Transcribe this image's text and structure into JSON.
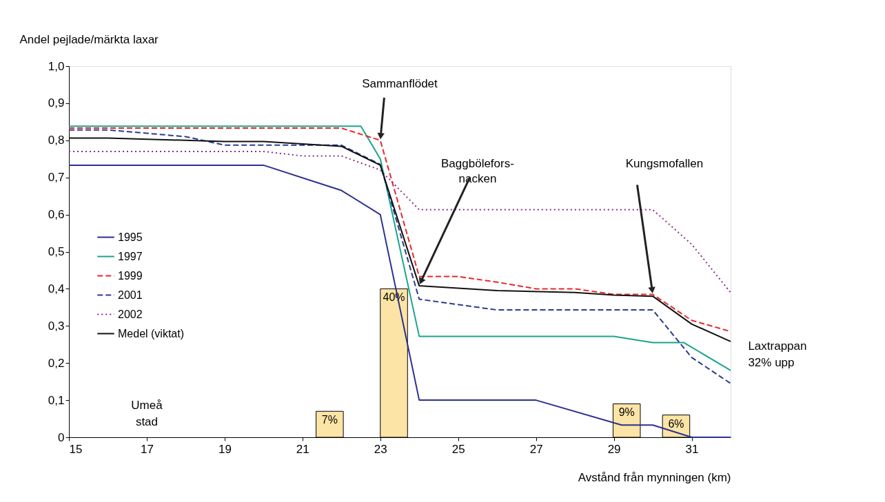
{
  "chart_data": {
    "type": "line",
    "xlabel": "Avstånd från mynningen (km)",
    "ylabel": "Andel pejlade/märkta laxar",
    "xlim": [
      15,
      32
    ],
    "xticks": [
      15,
      17,
      19,
      21,
      23,
      25,
      27,
      29,
      31
    ],
    "ylim": [
      0,
      1.0
    ],
    "yticks": [
      0,
      {
        "value": 0.1,
        "label": "0,1"
      },
      {
        "value": 0.2,
        "label": "0,2"
      },
      {
        "value": 0.3,
        "label": "0,3"
      },
      {
        "value": 0.4,
        "label": "0,4"
      },
      {
        "value": 0.5,
        "label": "0,5"
      },
      {
        "value": 0.6,
        "label": "0,6"
      },
      {
        "value": 0.7,
        "label": "0,7"
      },
      {
        "value": 0.8,
        "label": "0,8"
      },
      {
        "value": 0.9,
        "label": "0,9"
      },
      {
        "value": 1.0,
        "label": "1,0"
      }
    ],
    "grid": false,
    "legend": "left",
    "series": [
      {
        "type": "bar",
        "color": "#fce4a6",
        "x": [
          21.7,
          23.35,
          29.33,
          30.6
        ],
        "values": [
          0.07,
          0.4,
          0.09,
          0.06
        ],
        "value_labels": [
          "7%",
          "40%",
          "9%",
          "6%"
        ]
      },
      {
        "name": "1995",
        "color": "#2b2f8f",
        "line_style": "solid",
        "x": [
          15,
          20,
          22,
          23,
          24,
          27,
          29.2,
          30,
          31,
          32
        ],
        "values": [
          0.733,
          0.733,
          0.665,
          0.6,
          0.1,
          0.1,
          0.033,
          0.033,
          0.0,
          0.0
        ]
      },
      {
        "name": "1997",
        "color": "#1aa58a",
        "line_style": "solid",
        "x": [
          15,
          22.5,
          23,
          24,
          29,
          30,
          30.8,
          32
        ],
        "values": [
          0.838,
          0.838,
          0.75,
          0.272,
          0.272,
          0.255,
          0.255,
          0.18
        ]
      },
      {
        "name": "1999",
        "color": "#e8262a",
        "line_style": "dashed",
        "x": [
          15,
          22,
          23,
          24,
          25,
          26,
          27,
          28,
          29,
          30,
          31,
          32
        ],
        "values": [
          0.833,
          0.833,
          0.8,
          0.433,
          0.433,
          0.418,
          0.4,
          0.4,
          0.385,
          0.385,
          0.315,
          0.285
        ]
      },
      {
        "name": "2001",
        "color": "#2b3a8f",
        "line_style": "dashed",
        "x": [
          15,
          16,
          18,
          19,
          22,
          23,
          24,
          26,
          30,
          31,
          32
        ],
        "values": [
          0.828,
          0.828,
          0.81,
          0.787,
          0.787,
          0.735,
          0.372,
          0.343,
          0.343,
          0.215,
          0.145
        ]
      },
      {
        "name": "2002",
        "color": "#8a2a8a",
        "line_style": "dotted",
        "x": [
          15,
          20,
          21,
          22,
          23,
          24,
          30,
          31,
          32
        ],
        "values": [
          0.77,
          0.77,
          0.758,
          0.758,
          0.72,
          0.613,
          0.613,
          0.52,
          0.39
        ]
      },
      {
        "name": "Medel (viktat)",
        "color": "#111111",
        "line_style": "solid",
        "x": [
          15,
          16,
          19,
          20,
          22,
          23,
          24,
          26,
          28,
          29,
          30,
          31,
          32
        ],
        "values": [
          0.806,
          0.806,
          0.797,
          0.797,
          0.784,
          0.733,
          0.408,
          0.395,
          0.39,
          0.383,
          0.38,
          0.305,
          0.258
        ]
      }
    ],
    "annotations": [
      {
        "text": "Sammanflödet",
        "x": 23,
        "y": 0.8
      },
      {
        "text": "Baggbölefors-\nnacken",
        "x": 24,
        "y": 0.41
      },
      {
        "text": "Kungsmofallen",
        "x": 30,
        "y": 0.385
      },
      "Laxtrappan\n32% upp",
      "Umeå\nstad"
    ]
  }
}
